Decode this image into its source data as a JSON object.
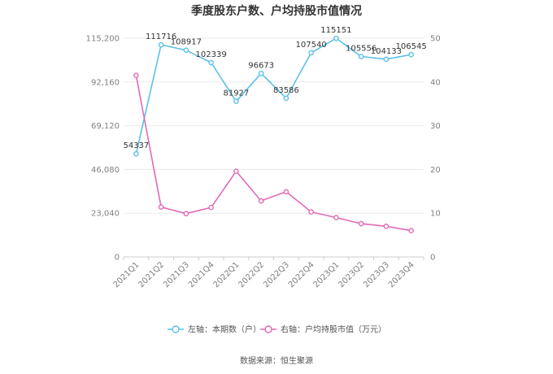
{
  "chart_data": {
    "type": "line",
    "title": "季度股东户数、户均持股市值情况",
    "categories": [
      "2021Q1",
      "2021Q2",
      "2021Q3",
      "2021Q4",
      "2022Q1",
      "2022Q2",
      "2022Q3",
      "2022Q4",
      "2023Q1",
      "2023Q2",
      "2023Q3",
      "2023Q4"
    ],
    "left_axis": {
      "ylim": [
        0,
        115200
      ],
      "ticks": [
        "0",
        "23,040",
        "46,080",
        "69,120",
        "92,160",
        "115,200"
      ]
    },
    "right_axis": {
      "ylim": [
        0,
        50
      ],
      "ticks": [
        "0",
        "10",
        "20",
        "30",
        "40",
        "50"
      ]
    },
    "series": [
      {
        "name": "左轴：本期数（户）",
        "axis": "left",
        "color": "#5bc0eb",
        "values": [
          54337,
          111716,
          108917,
          102339,
          81927,
          96673,
          83586,
          107540,
          115151,
          105556,
          104133,
          106545
        ],
        "labels": [
          "54337",
          "111716",
          "108917",
          "102339",
          "81927",
          "96673",
          "83586",
          "107540",
          "115151",
          "105556",
          "104133",
          "106545"
        ]
      },
      {
        "name": "右轴：户均持股市值（万元）",
        "axis": "right",
        "color": "#e36ab4",
        "values": [
          41.5,
          11.4,
          9.9,
          11.3,
          19.6,
          12.8,
          14.9,
          10.3,
          9.0,
          7.6,
          7.0,
          6.0
        ]
      }
    ],
    "grid": true,
    "legend_position": "bottom"
  },
  "footer": {
    "source": "数据来源：恒生聚源"
  }
}
